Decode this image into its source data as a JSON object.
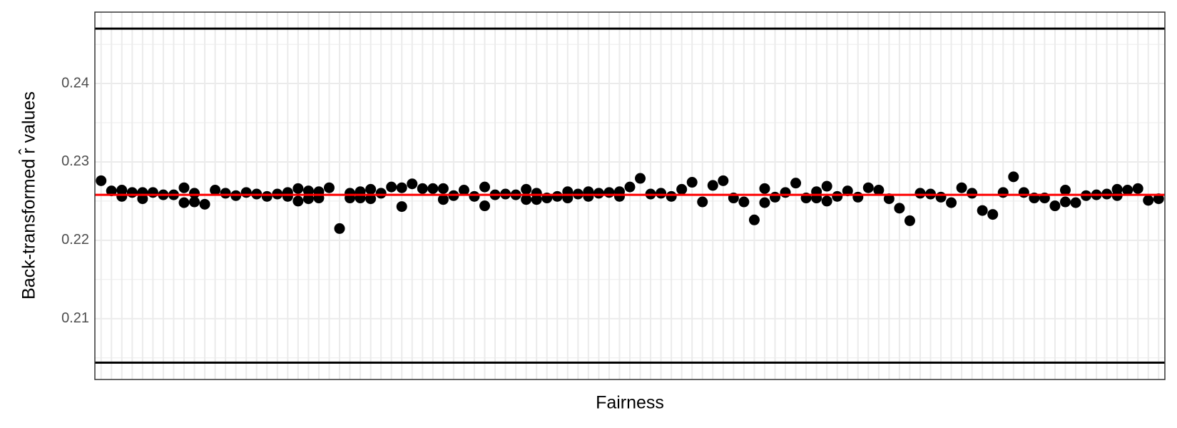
{
  "chart_data": {
    "type": "scatter",
    "x_label": "Fairness",
    "y_label": "Back-transformed r̂ values",
    "categories": [
      null,
      null,
      null,
      null,
      null,
      null,
      null,
      null,
      null,
      null,
      null,
      null,
      null,
      null,
      null,
      null,
      null,
      null,
      null,
      null,
      null,
      null,
      null,
      null,
      null,
      null,
      null,
      null,
      null,
      null,
      null,
      null,
      null,
      null,
      null,
      null,
      null,
      null,
      null,
      null,
      null,
      null,
      null,
      null,
      null,
      null,
      null,
      null,
      null,
      null,
      null,
      null,
      null,
      null,
      null,
      null,
      null,
      null,
      null,
      null,
      null,
      null,
      null,
      null,
      null,
      null,
      null,
      null,
      null,
      null,
      null,
      null,
      null,
      null,
      null,
      null,
      null,
      null,
      null,
      null,
      null,
      null,
      null,
      null,
      null,
      null,
      null,
      null,
      null,
      null,
      null,
      null,
      null,
      null,
      null,
      null,
      null,
      null,
      null,
      null,
      null,
      null,
      null
    ],
    "series": [
      {
        "color": "#000000",
        "values": [
          0.2276,
          0.2263,
          0.2264,
          0.2261,
          0.2261,
          0.2261,
          0.2258,
          0.2258,
          0.2267,
          0.226,
          0.2246,
          0.2264,
          0.226,
          0.2257,
          0.2261,
          0.2259,
          0.2256,
          0.2259,
          0.2261,
          0.2266,
          0.2263,
          0.2262,
          0.2267,
          0.2215,
          0.226,
          0.2262,
          0.2265,
          0.226,
          0.2268,
          0.2267,
          0.2272,
          0.2266,
          0.2266,
          0.2266,
          0.2257,
          0.2264,
          0.2256,
          0.2268,
          0.2258,
          0.2259,
          0.2258,
          0.2265,
          0.226,
          0.2254,
          0.2256,
          0.2262,
          0.2259,
          0.2262,
          0.226,
          0.2261,
          0.2262,
          0.2268,
          0.2279,
          0.2259,
          0.226,
          0.2256,
          0.2265,
          0.2274,
          0.2249,
          0.227,
          0.2276,
          0.2254,
          0.2249,
          0.2226,
          0.2266,
          0.2255,
          0.2261,
          0.2273,
          0.2254,
          0.2262,
          0.2269,
          0.2256,
          0.2263,
          0.2255,
          0.2267,
          0.2264,
          0.2253,
          0.2241,
          0.2225,
          0.226,
          0.2259,
          0.2255,
          0.2248,
          0.2267,
          0.226,
          0.2238,
          0.2233,
          0.2261,
          0.2281,
          0.2261,
          0.2254,
          0.2254,
          0.2244,
          0.2264,
          0.2248,
          0.2257,
          0.2258,
          0.2259,
          0.2265,
          0.2264,
          0.2266,
          0.2251,
          0.2253
        ]
      },
      {
        "color": "#000000",
        "values": [
          null,
          null,
          0.2256,
          null,
          0.2253,
          null,
          null,
          null,
          0.2248,
          0.2249,
          null,
          null,
          null,
          null,
          null,
          null,
          null,
          null,
          0.2256,
          0.225,
          0.2253,
          0.2254,
          null,
          null,
          0.2254,
          0.2254,
          0.2253,
          null,
          null,
          0.2243,
          null,
          null,
          null,
          0.2252,
          null,
          null,
          null,
          0.2244,
          null,
          null,
          null,
          0.2252,
          0.2252,
          null,
          null,
          0.2254,
          null,
          0.2256,
          null,
          null,
          0.2256,
          null,
          null,
          null,
          null,
          null,
          null,
          null,
          null,
          null,
          null,
          null,
          null,
          null,
          0.2248,
          null,
          null,
          null,
          null,
          0.2254,
          0.225,
          null,
          null,
          null,
          null,
          null,
          null,
          null,
          null,
          null,
          null,
          null,
          null,
          null,
          null,
          null,
          null,
          null,
          null,
          null,
          null,
          null,
          null,
          0.2249,
          null,
          null,
          null,
          null,
          0.2257,
          null,
          null,
          null,
          null
        ]
      }
    ],
    "hlines": [
      {
        "value": 0.247,
        "color": "#000000"
      },
      {
        "value": 0.2044,
        "color": "#000000"
      },
      {
        "value": 0.2258,
        "color": "#ff0000"
      }
    ],
    "ylim": [
      0.20225,
      0.2491
    ],
    "yticks": [
      0.21,
      0.22,
      0.23,
      0.24
    ],
    "grid": true
  }
}
